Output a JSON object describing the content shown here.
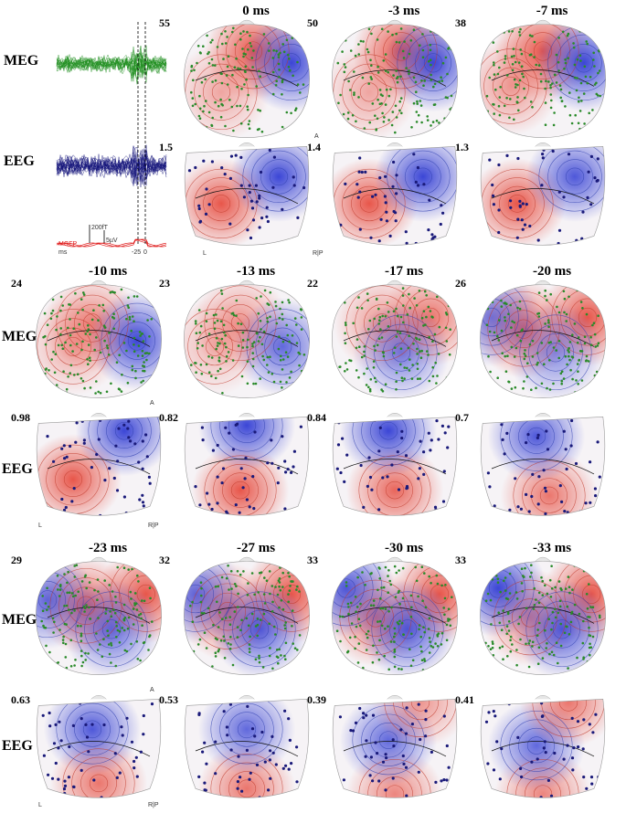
{
  "row_labels": {
    "meg": "MEG",
    "eeg": "EEG"
  },
  "waveform_panel": {
    "legend_mgfp": "MGFP",
    "legend_ms": "ms",
    "scale_meg": "200fT",
    "scale_eeg": "5µV",
    "tick_left": "-25",
    "tick_right": "0"
  },
  "orientation": {
    "left": "L",
    "right": "R",
    "posterior": "P",
    "anterior": "A"
  },
  "frames": [
    {
      "time": "0 ms",
      "meg_scale": "55",
      "eeg_scale": "1.5"
    },
    {
      "time": "-3 ms",
      "meg_scale": "50",
      "eeg_scale": "1.4"
    },
    {
      "time": "-7 ms",
      "meg_scale": "38",
      "eeg_scale": "1.3"
    },
    {
      "time": "-10 ms",
      "meg_scale": "24",
      "eeg_scale": "0.98"
    },
    {
      "time": "-13 ms",
      "meg_scale": "23",
      "eeg_scale": "0.82"
    },
    {
      "time": "-17 ms",
      "meg_scale": "22",
      "eeg_scale": "0.84"
    },
    {
      "time": "-20 ms",
      "meg_scale": "26",
      "eeg_scale": "0.7"
    },
    {
      "time": "-23 ms",
      "meg_scale": "29",
      "eeg_scale": "0.63"
    },
    {
      "time": "-27 ms",
      "meg_scale": "32",
      "eeg_scale": "0.53"
    },
    {
      "time": "-30 ms",
      "meg_scale": "33",
      "eeg_scale": "0.39"
    },
    {
      "time": "-33 ms",
      "meg_scale": "33",
      "eeg_scale": "0.41"
    }
  ],
  "colors": {
    "positive": "#e8564a",
    "negative": "#3b46d6",
    "meg_sensor": "#2a8a2a",
    "eeg_sensor": "#1a1a7a",
    "meg_trace": "#1f8f1f",
    "eeg_trace": "#14147a",
    "mgfp": "#e02020"
  }
}
